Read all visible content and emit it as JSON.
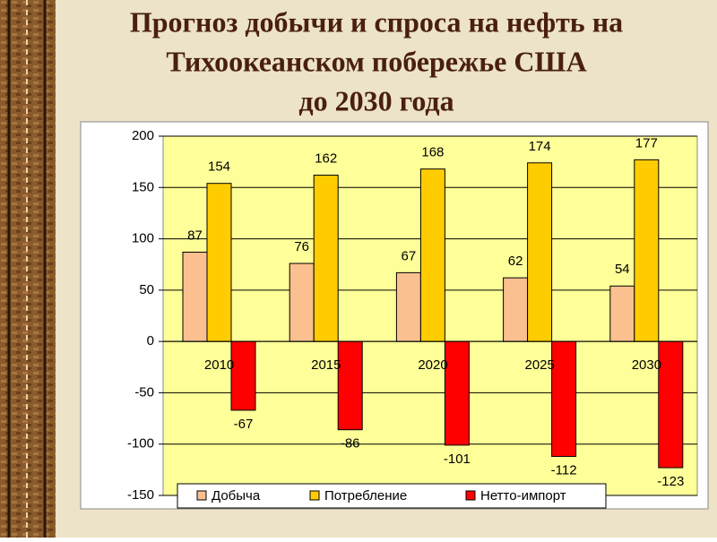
{
  "chart_data": {
    "type": "bar",
    "title": [
      "Прогноз добычи и спроса на нефть на",
      "Тихоокеанском побережье США",
      "до 2030 года"
    ],
    "categories": [
      "2010",
      "2015",
      "2020",
      "2025",
      "2030"
    ],
    "series": [
      {
        "name": "Добыча",
        "color": "#fac090",
        "values": [
          87,
          76,
          67,
          62,
          54
        ]
      },
      {
        "name": "Потребление",
        "color": "#ffcc00",
        "values": [
          154,
          162,
          168,
          174,
          177
        ]
      },
      {
        "name": "Нетто-импорт",
        "color": "#ff0000",
        "values": [
          -67,
          -86,
          -101,
          -112,
          -123
        ]
      }
    ],
    "ylim": [
      -150,
      200
    ],
    "yticks": [
      -150,
      -100,
      -50,
      0,
      50,
      100,
      150,
      200
    ],
    "grid": true
  }
}
